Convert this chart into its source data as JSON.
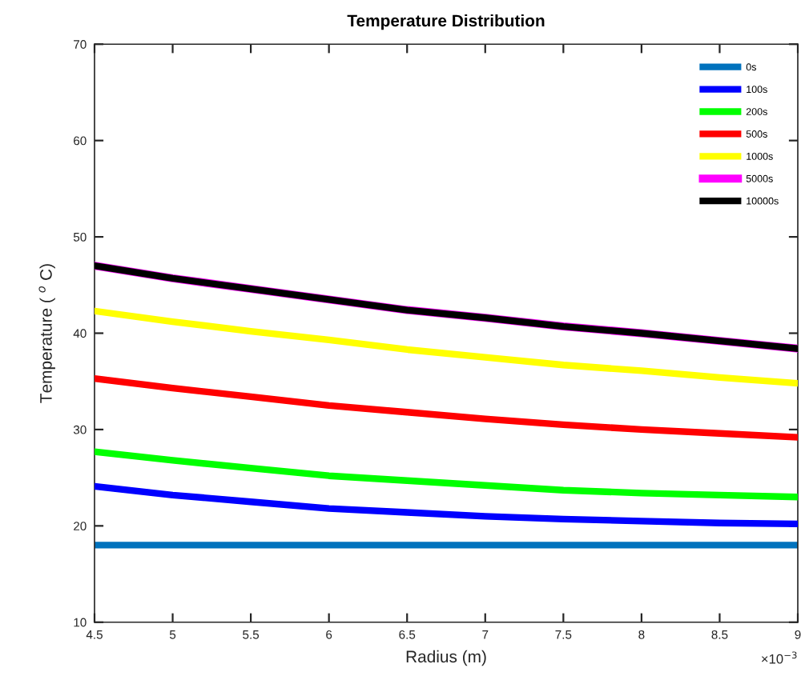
{
  "chart_data": {
    "type": "line",
    "title": "Temperature Distribution",
    "xlabel": "Radius (m)",
    "ylabel": "Temperature ( $^{o}$ C)",
    "x": [
      4.5,
      5,
      5.5,
      6,
      6.5,
      7,
      7.5,
      8,
      8.5,
      9
    ],
    "series": [
      {
        "name": "0s",
        "color": "#0072bd",
        "values": [
          18,
          18,
          18,
          18,
          18,
          18,
          18,
          18,
          18,
          18
        ]
      },
      {
        "name": "100s",
        "color": "#0000ff",
        "values": [
          24.1,
          23.2,
          22.5,
          21.8,
          21.4,
          21.0,
          20.7,
          20.5,
          20.3,
          20.2
        ]
      },
      {
        "name": "200s",
        "color": "#00ff00",
        "values": [
          27.7,
          26.8,
          26.0,
          25.2,
          24.7,
          24.2,
          23.7,
          23.4,
          23.2,
          23.0
        ]
      },
      {
        "name": "500s",
        "color": "#ff0000",
        "values": [
          35.3,
          34.3,
          33.4,
          32.5,
          31.8,
          31.1,
          30.5,
          30.0,
          29.6,
          29.2
        ]
      },
      {
        "name": "1000s",
        "color": "#ffff00",
        "values": [
          42.3,
          41.2,
          40.2,
          39.3,
          38.3,
          37.5,
          36.7,
          36.1,
          35.4,
          34.8
        ]
      },
      {
        "name": "5000s",
        "color": "#ff00ff",
        "values": [
          47,
          45.7,
          44.6,
          43.5,
          42.4,
          41.6,
          40.7,
          40.0,
          39.2,
          38.4
        ]
      },
      {
        "name": "10000s",
        "color": "#000000",
        "values": [
          47,
          45.7,
          44.6,
          43.5,
          42.4,
          41.6,
          40.7,
          40.0,
          39.2,
          38.4
        ]
      }
    ],
    "xlim": [
      4.5,
      9
    ],
    "xticks": [
      4.5,
      5,
      5.5,
      6,
      6.5,
      7,
      7.5,
      8,
      8.5,
      9
    ],
    "ylim": [
      10,
      70
    ],
    "yticks": [
      10,
      20,
      30,
      40,
      50,
      60,
      70
    ],
    "annotations": [
      "×10$^{−3}$"
    ],
    "grid": false,
    "legend": "top right",
    "marker": "none",
    "line_style": "solid"
  }
}
